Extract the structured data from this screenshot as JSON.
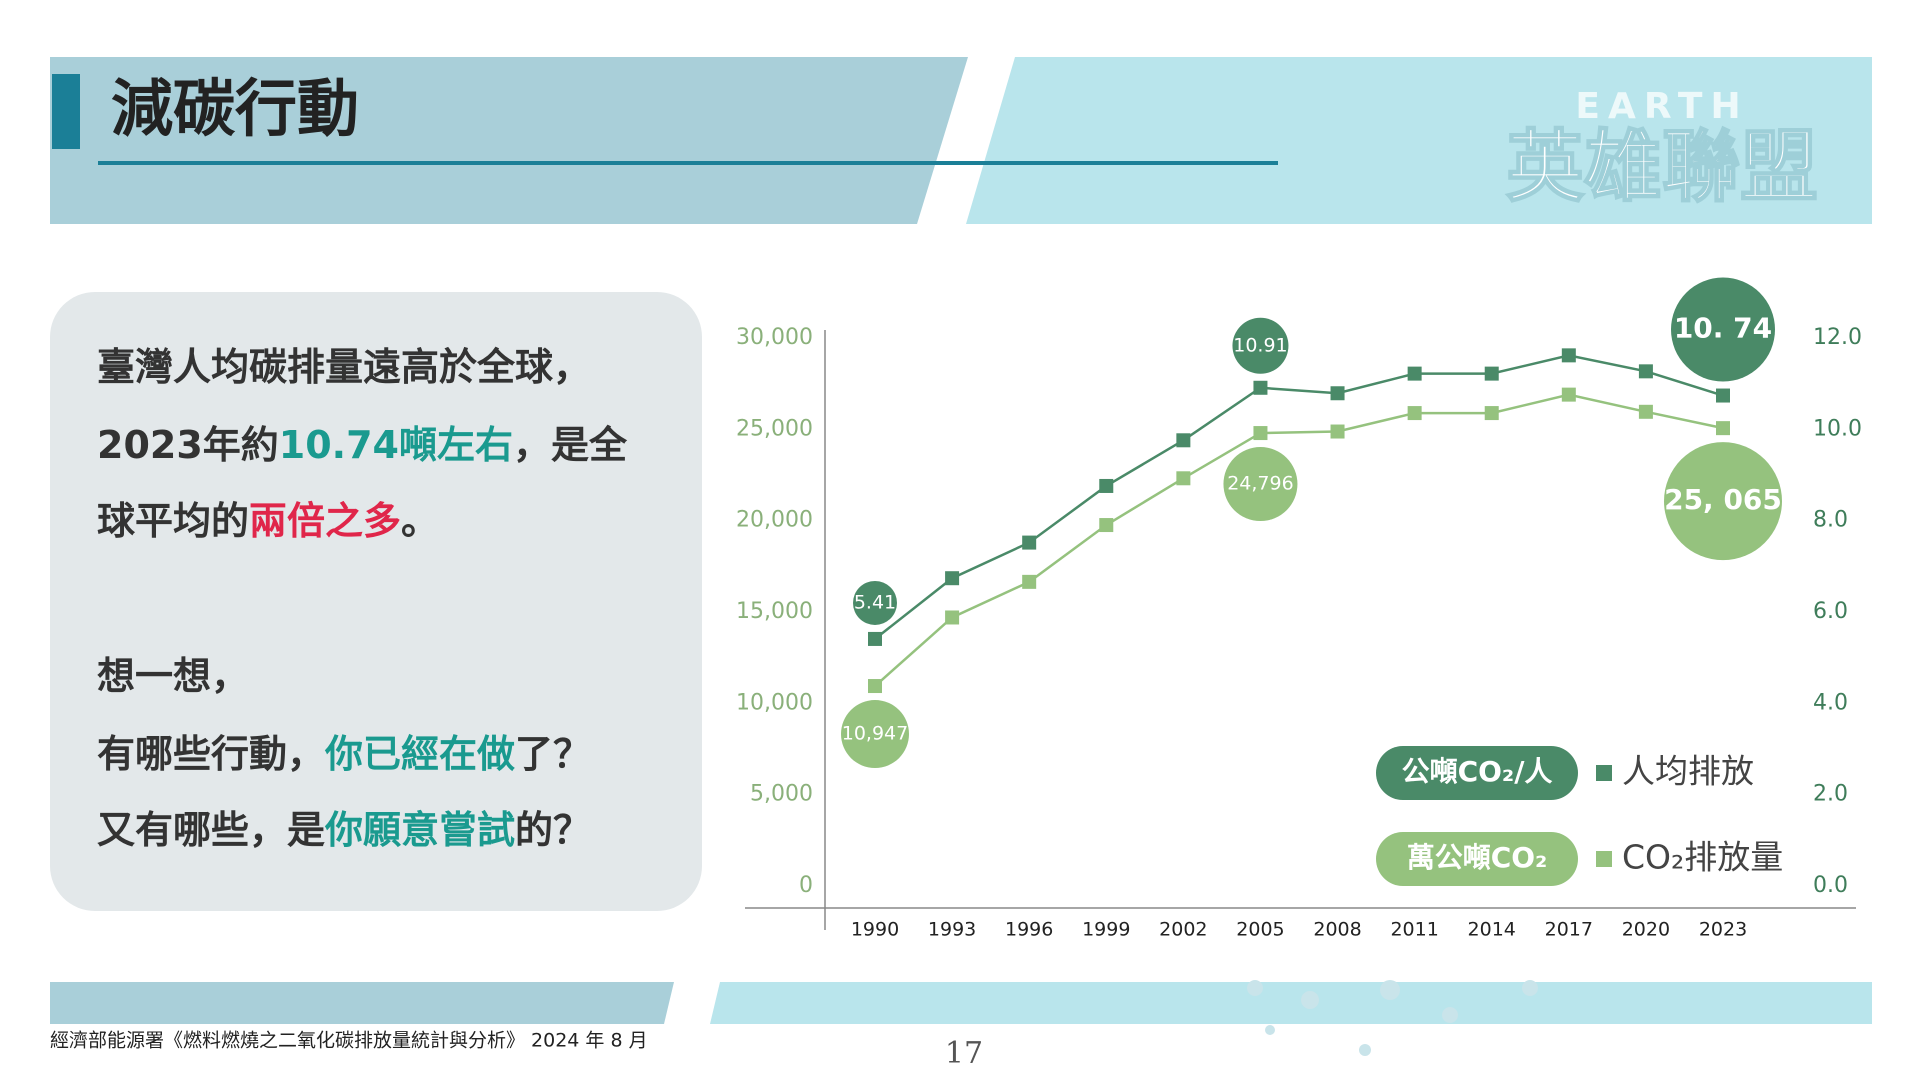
{
  "header": {
    "title": "減碳行動",
    "logo_top": "EARTH",
    "logo_main": "英雄聯盟"
  },
  "text_box": {
    "blocks": [
      [
        [
          {
            "text": "臺灣人均碳排量遠高於全球，"
          }
        ],
        [
          {
            "text": "2023年約"
          },
          {
            "text": "10.74噸左右",
            "color": "#1a9a8f"
          },
          {
            "text": "，是全"
          }
        ],
        [
          {
            "text": "球平均的"
          },
          {
            "text": "兩倍之多",
            "color": "#e0264a"
          },
          {
            "text": "。"
          }
        ]
      ],
      [
        [
          {
            "text": "想一想，"
          }
        ],
        [
          {
            "text": "有哪些行動，"
          },
          {
            "text": "你已經在做",
            "color": "#1a9a8f"
          },
          {
            "text": "了？"
          }
        ],
        [
          {
            "text": "又有哪些，是"
          },
          {
            "text": "你願意嘗試",
            "color": "#1a9a8f"
          },
          {
            "text": "的？"
          }
        ]
      ]
    ]
  },
  "chart_data": {
    "type": "line",
    "x": [
      "1990",
      "1993",
      "1996",
      "1999",
      "2002",
      "2005",
      "2008",
      "2011",
      "2014",
      "2017",
      "2020",
      "2023"
    ],
    "series": [
      {
        "name": "人均排放",
        "unit": "公噸CO₂/人",
        "color": "#4a8a68",
        "axis": "y2",
        "values": [
          5.41,
          6.74,
          7.52,
          8.76,
          9.76,
          10.91,
          10.79,
          11.22,
          11.22,
          11.62,
          11.27,
          10.74
        ],
        "value_labels": [
          "5.41",
          null,
          null,
          null,
          null,
          "10.91",
          null,
          null,
          null,
          null,
          null,
          "10. 74"
        ]
      },
      {
        "name": "CO₂排放量",
        "unit": "萬公噸CO₂",
        "color": "#95c27e",
        "values": [
          10947,
          14700,
          16650,
          19760,
          22320,
          24796,
          24880,
          25890,
          25890,
          26900,
          25960,
          25065
        ],
        "value_labels": [
          "10,947",
          null,
          null,
          null,
          null,
          "24,796",
          null,
          null,
          null,
          null,
          null,
          "25, 065"
        ]
      }
    ],
    "ylim": [
      0,
      30000
    ],
    "yticks": [
      0,
      {
        "value": 5000,
        "label": "5,000"
      },
      {
        "value": 10000,
        "label": "10,000"
      },
      {
        "value": 15000,
        "label": "15,000"
      },
      {
        "value": 20000,
        "label": "20,000"
      },
      {
        "value": 25000,
        "label": "25,000"
      },
      {
        "value": 30000,
        "label": "30,000"
      }
    ],
    "y2lim": [
      0,
      12
    ],
    "y2ticks": [
      {
        "value": 0,
        "label": "0.0"
      },
      {
        "value": 2,
        "label": "2.0"
      },
      {
        "value": 4,
        "label": "4.0"
      },
      {
        "value": 6,
        "label": "6.0"
      },
      {
        "value": 8,
        "label": "8.0"
      },
      {
        "value": 10,
        "label": "10.0"
      },
      {
        "value": 12,
        "label": "12.0"
      }
    ],
    "grid": false
  },
  "footer": {
    "source": "經濟部能源署《燃料燃燒之二氧化碳排放量統計與分析》 2024 年 8 月",
    "page": "17"
  }
}
